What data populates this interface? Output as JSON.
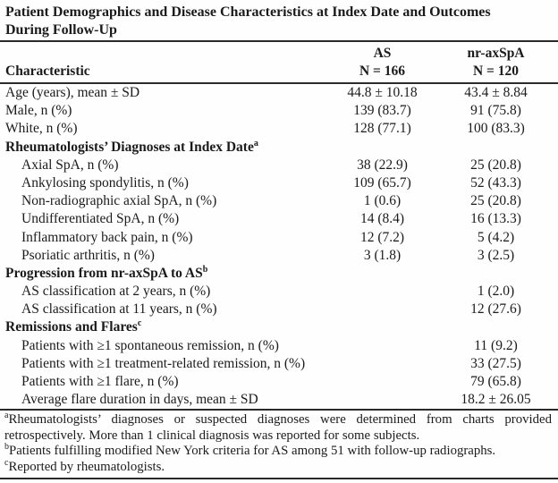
{
  "title": {
    "line1": "Patient Demographics and Disease Characteristics at Index Date and Outcomes",
    "line2": "During Follow-Up"
  },
  "table": {
    "header": {
      "characteristic": "Characteristic",
      "as_group": "AS",
      "as_n": "N = 166",
      "nr_group": "nr-axSpA",
      "nr_n": "N = 120"
    },
    "rows": [
      {
        "label": "Age (years), mean ± SD",
        "as": "44.8 ± 10.18",
        "nr": "43.4 ± 8.84",
        "style": "top"
      },
      {
        "label": "Male, n (%)",
        "as": "139 (83.7)",
        "nr": "91 (75.8)",
        "style": "top"
      },
      {
        "label": "White, n (%)",
        "as": "128 (77.1)",
        "nr": "100 (83.3)",
        "style": "top"
      },
      {
        "label": "Rheumatologists’ Diagnoses at Index Date",
        "sup": "a",
        "as": "",
        "nr": "",
        "style": "section"
      },
      {
        "label": "Axial SpA, n (%)",
        "as": "38 (22.9)",
        "nr": "25 (20.8)",
        "style": "sub"
      },
      {
        "label": "Ankylosing spondylitis, n (%)",
        "as": "109 (65.7)",
        "nr": "52 (43.3)",
        "style": "sub"
      },
      {
        "label": "Non-radiographic axial SpA, n (%)",
        "as": "1 (0.6)",
        "nr": "25 (20.8)",
        "style": "sub"
      },
      {
        "label": "Undifferentiated SpA, n (%)",
        "as": "14 (8.4)",
        "nr": "16 (13.3)",
        "style": "sub"
      },
      {
        "label": "Inflammatory back pain, n (%)",
        "as": "12 (7.2)",
        "nr": "5 (4.2)",
        "style": "sub"
      },
      {
        "label": "Psoriatic arthritis, n (%)",
        "as": "3 (1.8)",
        "nr": "3 (2.5)",
        "style": "sub"
      },
      {
        "label": "Progression from nr-axSpA to AS",
        "sup": "b",
        "as": "",
        "nr": "",
        "style": "section"
      },
      {
        "label": "AS classification at 2 years, n (%)",
        "as": "",
        "nr": "1 (2.0)",
        "style": "sub"
      },
      {
        "label": "AS classification at 11 years, n (%)",
        "as": "",
        "nr": "12 (27.6)",
        "style": "sub"
      },
      {
        "label": "Remissions and Flares",
        "sup": "c",
        "as": "",
        "nr": "",
        "style": "section"
      },
      {
        "label": "Patients with ≥1 spontaneous remission, n (%)",
        "as": "",
        "nr": "11 (9.2)",
        "style": "sub"
      },
      {
        "label": "Patients with ≥1 treatment-related remission, n (%)",
        "as": "",
        "nr": "33 (27.5)",
        "style": "sub"
      },
      {
        "label": "Patients with ≥1 flare, n (%)",
        "as": "",
        "nr": "79 (65.8)",
        "style": "sub"
      },
      {
        "label": "Average flare duration in days, mean ± SD",
        "as": "",
        "nr": "18.2 ± 26.05",
        "style": "sub"
      }
    ]
  },
  "footnotes": [
    {
      "sup": "a",
      "text": "Rheumatologists’ diagnoses or suspected diagnoses were determined from charts provided retrospectively. More than 1 clinical diagnosis was reported for some subjects."
    },
    {
      "sup": "b",
      "text": "Patients fulfilling modified New York criteria for AS among 51 with follow-up radiographs."
    },
    {
      "sup": "c",
      "text": "Reported by rheumatologists."
    }
  ]
}
